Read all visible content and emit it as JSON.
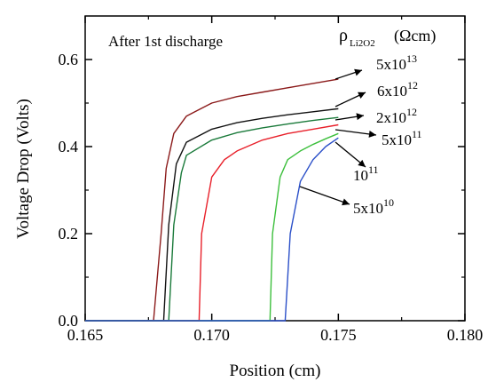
{
  "chart_data": {
    "type": "line",
    "title": "",
    "annotation": "After 1st discharge",
    "xlabel": "Position (cm)",
    "ylabel": "Voltage Drop (Volts)",
    "xlim": [
      0.165,
      0.18
    ],
    "ylim": [
      0.0,
      0.7
    ],
    "x_ticks": [
      "0.165",
      "0.170",
      "0.175",
      "0.180"
    ],
    "y_ticks": [
      "0.0",
      "0.2",
      "0.4",
      "0.6"
    ],
    "grid": false,
    "legend_title": {
      "symbol": "ρ",
      "subscript": "Li2O2",
      "unit": "(Ωcm)"
    },
    "series": [
      {
        "label_base": "5x10",
        "label_exp": "13",
        "color": "#8b1a1a",
        "points": [
          [
            0.165,
            0.0
          ],
          [
            0.1677,
            0.0
          ],
          [
            0.168,
            0.2
          ],
          [
            0.1682,
            0.35
          ],
          [
            0.1685,
            0.43
          ],
          [
            0.169,
            0.47
          ],
          [
            0.17,
            0.5
          ],
          [
            0.171,
            0.515
          ],
          [
            0.172,
            0.525
          ],
          [
            0.173,
            0.535
          ],
          [
            0.174,
            0.545
          ],
          [
            0.175,
            0.555
          ]
        ]
      },
      {
        "label_base": "6x10",
        "label_exp": "12",
        "color": "#111111",
        "points": [
          [
            0.165,
            0.0
          ],
          [
            0.1681,
            0.0
          ],
          [
            0.1683,
            0.22
          ],
          [
            0.1686,
            0.36
          ],
          [
            0.169,
            0.41
          ],
          [
            0.17,
            0.44
          ],
          [
            0.171,
            0.455
          ],
          [
            0.172,
            0.465
          ],
          [
            0.173,
            0.473
          ],
          [
            0.174,
            0.48
          ],
          [
            0.175,
            0.487
          ]
        ]
      },
      {
        "label_base": "2x10",
        "label_exp": "12",
        "color": "#1a7a3a",
        "points": [
          [
            0.165,
            0.0
          ],
          [
            0.1683,
            0.0
          ],
          [
            0.1685,
            0.22
          ],
          [
            0.1688,
            0.34
          ],
          [
            0.169,
            0.38
          ],
          [
            0.17,
            0.415
          ],
          [
            0.171,
            0.432
          ],
          [
            0.172,
            0.443
          ],
          [
            0.173,
            0.452
          ],
          [
            0.174,
            0.46
          ],
          [
            0.175,
            0.467
          ]
        ]
      },
      {
        "label_base": "5x10",
        "label_exp": "11",
        "color": "#e8202a",
        "points": [
          [
            0.165,
            0.0
          ],
          [
            0.1695,
            0.0
          ],
          [
            0.1696,
            0.2
          ],
          [
            0.17,
            0.33
          ],
          [
            0.1705,
            0.37
          ],
          [
            0.171,
            0.39
          ],
          [
            0.172,
            0.415
          ],
          [
            0.173,
            0.43
          ],
          [
            0.174,
            0.44
          ],
          [
            0.175,
            0.45
          ]
        ]
      },
      {
        "label_base": "10",
        "label_exp": "11",
        "color": "#3cbf3c",
        "points": [
          [
            0.165,
            0.0
          ],
          [
            0.1723,
            0.0
          ],
          [
            0.1724,
            0.2
          ],
          [
            0.1727,
            0.33
          ],
          [
            0.173,
            0.37
          ],
          [
            0.1735,
            0.39
          ],
          [
            0.174,
            0.405
          ],
          [
            0.1745,
            0.418
          ],
          [
            0.175,
            0.43
          ]
        ]
      },
      {
        "label_base": "5x10",
        "label_exp": "10",
        "color": "#2a4fc8",
        "points": [
          [
            0.165,
            0.0
          ],
          [
            0.1729,
            0.0
          ],
          [
            0.173,
            0.1
          ],
          [
            0.1731,
            0.2
          ],
          [
            0.1735,
            0.32
          ],
          [
            0.174,
            0.37
          ],
          [
            0.1745,
            0.4
          ],
          [
            0.175,
            0.42
          ]
        ]
      }
    ]
  }
}
